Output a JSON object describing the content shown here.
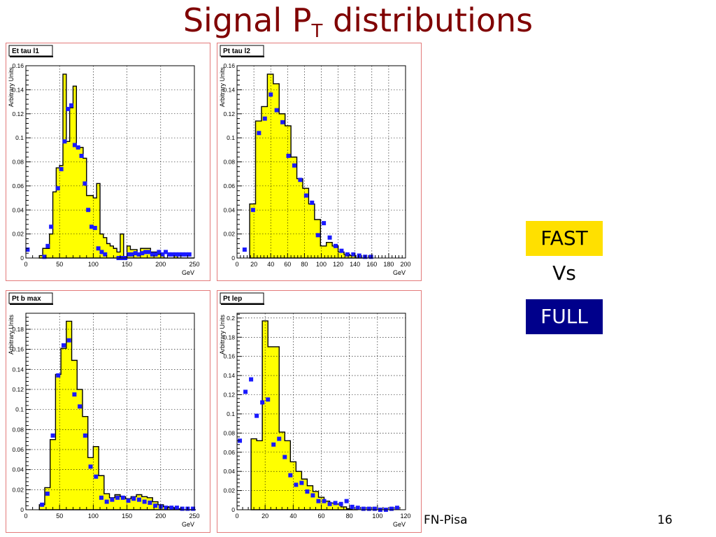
{
  "title": {
    "main": "Signal P",
    "sub": "T",
    "rest": " distributions"
  },
  "legend_boxes": {
    "fast": "FAST",
    "vs": "Vs",
    "full": "FULL",
    "fast_color": "#ffe000",
    "full_color": "#00008b"
  },
  "footer": {
    "text": "FN-Pisa",
    "page": "16"
  },
  "colors": {
    "hist_fill": "#ffff00",
    "marker": "#1a1aff",
    "title_color": "#800000",
    "panel_border": "#e37a7a"
  },
  "chart_data": [
    {
      "type": "bar",
      "title": "Et tau l1",
      "xlabel": "GeV",
      "ylabel": "Arbitrary Units",
      "xlim": [
        0,
        250
      ],
      "ylim": [
        0,
        0.16
      ],
      "xticks": [
        0,
        50,
        100,
        150,
        200,
        250
      ],
      "yticks": [
        0,
        0.02,
        0.04,
        0.06,
        0.08,
        0.1,
        0.12,
        0.14,
        0.16
      ],
      "ytick_labels": [
        "0",
        "0.02",
        "0.04",
        "0.06",
        "0.08",
        "0.1",
        "0.12",
        "0.14",
        "0.16"
      ],
      "grid": true,
      "series": [
        {
          "name": "FAST",
          "kind": "histogram",
          "bin_width": 5,
          "x": [
            20,
            25,
            30,
            35,
            40,
            45,
            50,
            55,
            60,
            65,
            70,
            75,
            80,
            85,
            90,
            95,
            100,
            105,
            110,
            115,
            120,
            125,
            130,
            135,
            140,
            145,
            150,
            155,
            160,
            165,
            170,
            175,
            180,
            185,
            190,
            195,
            200,
            205,
            210,
            215,
            220,
            225,
            230,
            235,
            240,
            245
          ],
          "values": [
            0.002,
            0.008,
            0.008,
            0.02,
            0.055,
            0.075,
            0.077,
            0.153,
            0.097,
            0.125,
            0.143,
            0.092,
            0.092,
            0.083,
            0.052,
            0.052,
            0.05,
            0.062,
            0.02,
            0.017,
            0.012,
            0.01,
            0.008,
            0.005,
            0.02,
            0.0,
            0.01,
            0.007,
            0.007,
            0.003,
            0.008,
            0.008,
            0.008,
            0.005,
            0.005,
            0.003,
            0.003,
            0.0,
            0.0,
            0.0,
            0.003,
            0.0,
            0.0,
            0.0,
            0.0,
            0.0
          ]
        },
        {
          "name": "FULL",
          "kind": "points",
          "x": [
            2.5,
            27.5,
            32.5,
            37.5,
            47.5,
            52.5,
            57.5,
            62.5,
            67.5,
            72.5,
            77.5,
            82.5,
            87.5,
            92.5,
            97.5,
            102.5,
            107.5,
            112.5,
            117.5,
            137.5,
            142.5,
            147.5,
            152.5,
            157.5,
            162.5,
            167.5,
            172.5,
            177.5,
            182.5,
            187.5,
            192.5,
            197.5,
            202.5,
            207.5,
            212.5,
            217.5,
            222.5,
            227.5,
            232.5,
            237.5,
            242.5
          ],
          "values": [
            0.007,
            0.001,
            0.01,
            0.026,
            0.058,
            0.074,
            0.097,
            0.124,
            0.127,
            0.094,
            0.092,
            0.085,
            0.062,
            0.04,
            0.026,
            0.025,
            0.008,
            0.005,
            0.003,
            0.0,
            0.0,
            0.0,
            0.003,
            0.003,
            0.004,
            0.003,
            0.004,
            0.005,
            0.005,
            0.003,
            0.003,
            0.005,
            0.003,
            0.005,
            0.003,
            0.003,
            0.003,
            0.003,
            0.003,
            0.003,
            0.003
          ]
        }
      ]
    },
    {
      "type": "bar",
      "title": "Pt tau l2",
      "xlabel": "GeV",
      "ylabel": "Arbitrary Units",
      "xlim": [
        0,
        200
      ],
      "ylim": [
        0,
        0.16
      ],
      "xticks": [
        0,
        20,
        40,
        60,
        80,
        100,
        120,
        140,
        160,
        180,
        200
      ],
      "yticks": [
        0,
        0.02,
        0.04,
        0.06,
        0.08,
        0.1,
        0.12,
        0.14,
        0.16
      ],
      "ytick_labels": [
        "0",
        "0.02",
        "0.04",
        "0.06",
        "0.08",
        "0.1",
        "0.12",
        "0.14",
        "0.16"
      ],
      "grid": true,
      "series": [
        {
          "name": "FAST",
          "kind": "histogram",
          "bin_width": 7,
          "x": [
            15,
            22,
            29,
            36,
            43,
            50,
            57,
            64,
            71,
            78,
            85,
            92,
            99,
            106,
            113,
            120,
            127,
            134,
            141,
            148
          ],
          "values": [
            0.045,
            0.114,
            0.126,
            0.153,
            0.145,
            0.12,
            0.11,
            0.084,
            0.066,
            0.058,
            0.045,
            0.032,
            0.01,
            0.013,
            0.01,
            0.005,
            0.003,
            0.002,
            0.0,
            0.0
          ]
        },
        {
          "name": "FULL",
          "kind": "points",
          "x": [
            9,
            19,
            26,
            33,
            40,
            47,
            54,
            61,
            68,
            75,
            82,
            89,
            96,
            103,
            110,
            117,
            124,
            131,
            138,
            145,
            152,
            159
          ],
          "values": [
            0.007,
            0.04,
            0.104,
            0.116,
            0.136,
            0.123,
            0.113,
            0.085,
            0.077,
            0.065,
            0.052,
            0.046,
            0.019,
            0.029,
            0.017,
            0.01,
            0.006,
            0.003,
            0.003,
            0.002,
            0.001,
            0.001
          ]
        }
      ]
    },
    {
      "type": "bar",
      "title": "Pt b max",
      "xlabel": "GeV",
      "ylabel": "Arbitrary Units",
      "xlim": [
        0,
        250
      ],
      "ylim": [
        0,
        0.196
      ],
      "xticks": [
        0,
        50,
        100,
        150,
        200,
        250
      ],
      "yticks": [
        0,
        0.02,
        0.04,
        0.06,
        0.08,
        0.1,
        0.12,
        0.14,
        0.16,
        0.18
      ],
      "ytick_labels": [
        "0",
        "0.02",
        "0.04",
        "0.06",
        "0.08",
        "0.1",
        "0.12",
        "0.14",
        "0.16",
        "0.18"
      ],
      "grid": true,
      "series": [
        {
          "name": "FAST",
          "kind": "histogram",
          "bin_width": 8,
          "x": [
            20,
            28,
            36,
            44,
            52,
            60,
            68,
            76,
            84,
            92,
            100,
            108,
            116,
            124,
            132,
            140,
            148,
            156,
            164,
            172,
            180,
            188,
            196,
            204,
            212,
            220,
            228,
            236,
            244
          ],
          "values": [
            0.005,
            0.022,
            0.07,
            0.135,
            0.161,
            0.188,
            0.149,
            0.12,
            0.093,
            0.052,
            0.063,
            0.034,
            0.016,
            0.012,
            0.015,
            0.013,
            0.011,
            0.013,
            0.015,
            0.013,
            0.012,
            0.008,
            0.005,
            0.003,
            0.002,
            0.001,
            0.0,
            0.0,
            0.0
          ]
        },
        {
          "name": "FULL",
          "kind": "points",
          "x": [
            24,
            32,
            40,
            48,
            56,
            64,
            72,
            80,
            88,
            96,
            104,
            112,
            120,
            128,
            136,
            144,
            152,
            160,
            168,
            176,
            184,
            192,
            200,
            208,
            216,
            224,
            232,
            240,
            248
          ],
          "values": [
            0.005,
            0.016,
            0.074,
            0.134,
            0.164,
            0.169,
            0.115,
            0.103,
            0.074,
            0.043,
            0.033,
            0.012,
            0.008,
            0.01,
            0.012,
            0.012,
            0.009,
            0.011,
            0.01,
            0.008,
            0.007,
            0.004,
            0.003,
            0.002,
            0.002,
            0.002,
            0.001,
            0.001,
            0.001
          ]
        }
      ]
    },
    {
      "type": "bar",
      "title": "Pt lep",
      "xlabel": "GeV",
      "ylabel": "Arbitrary Units",
      "xlim": [
        0,
        120
      ],
      "ylim": [
        0,
        0.205
      ],
      "xticks": [
        0,
        20,
        40,
        60,
        80,
        100,
        120
      ],
      "yticks": [
        0,
        0.02,
        0.04,
        0.06,
        0.08,
        0.1,
        0.12,
        0.14,
        0.16,
        0.18,
        0.2
      ],
      "ytick_labels": [
        "0",
        "0.02",
        "0.04",
        "0.06",
        "0.08",
        "0.1",
        "0.12",
        "0.14",
        "0.16",
        "0.18",
        "0.2"
      ],
      "grid": true,
      "series": [
        {
          "name": "FAST",
          "kind": "histogram",
          "bin_width": 4,
          "x": [
            10,
            14,
            18,
            22,
            26,
            30,
            34,
            38,
            42,
            46,
            50,
            54,
            58,
            62,
            66,
            70,
            74,
            78,
            82
          ],
          "values": [
            0.074,
            0.072,
            0.197,
            0.17,
            0.17,
            0.081,
            0.072,
            0.05,
            0.04,
            0.032,
            0.025,
            0.019,
            0.013,
            0.009,
            0.007,
            0.006,
            0.003,
            0.001,
            0.0
          ]
        },
        {
          "name": "FULL",
          "kind": "points",
          "x": [
            2,
            6,
            10,
            14,
            18,
            22,
            26,
            30,
            34,
            38,
            42,
            46,
            50,
            54,
            58,
            62,
            66,
            70,
            74,
            78,
            82,
            86,
            90,
            94,
            98,
            102,
            106,
            110,
            114
          ],
          "values": [
            0.072,
            0.123,
            0.136,
            0.098,
            0.112,
            0.115,
            0.068,
            0.074,
            0.055,
            0.036,
            0.026,
            0.028,
            0.019,
            0.015,
            0.009,
            0.009,
            0.006,
            0.007,
            0.006,
            0.009,
            0.003,
            0.002,
            0.001,
            0.001,
            0.001,
            0.0,
            0.0,
            0.001,
            0.002
          ]
        }
      ]
    }
  ]
}
